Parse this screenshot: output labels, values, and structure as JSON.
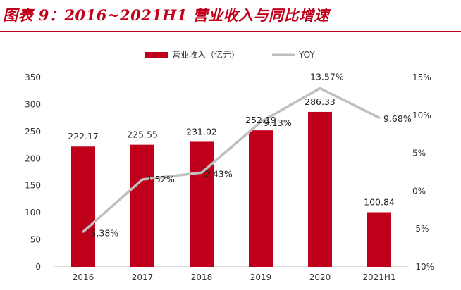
{
  "figure_title": "图表 9：2016~2021H1 营业收入与同比增速",
  "chart_data": {
    "type": "bar",
    "categories": [
      "2016",
      "2017",
      "2018",
      "2019",
      "2020",
      "2021H1"
    ],
    "series": [
      {
        "name": "营业收入（亿元）",
        "type": "bar",
        "axis": "left",
        "color": "#c0001a",
        "values": [
          222.17,
          225.55,
          231.02,
          252.19,
          286.33,
          100.84
        ],
        "labels": [
          "222.17",
          "225.55",
          "231.02",
          "252.19",
          "286.33",
          "100.84"
        ]
      },
      {
        "name": "YOY",
        "type": "line",
        "axis": "right",
        "color": "#bfbfbf",
        "values": [
          -5.38,
          1.52,
          2.43,
          9.13,
          13.57,
          9.68
        ],
        "labels": [
          "-5.38%",
          "1.52%",
          "2.43%",
          "9.13%",
          "13.57%",
          "9.68%"
        ]
      }
    ],
    "y_left": {
      "lim": [
        0,
        350
      ],
      "ticks": [
        "0",
        "50",
        "100",
        "150",
        "200",
        "250",
        "300",
        "350"
      ],
      "tick_values": [
        0,
        50,
        100,
        150,
        200,
        250,
        300,
        350
      ]
    },
    "y_right": {
      "lim": [
        -10,
        15
      ],
      "ticks": [
        "-10%",
        "-5%",
        "0%",
        "5%",
        "10%",
        "15%"
      ],
      "tick_values": [
        -10,
        -5,
        0,
        5,
        10,
        15
      ]
    },
    "legend_position": "top-center",
    "grid": false
  }
}
